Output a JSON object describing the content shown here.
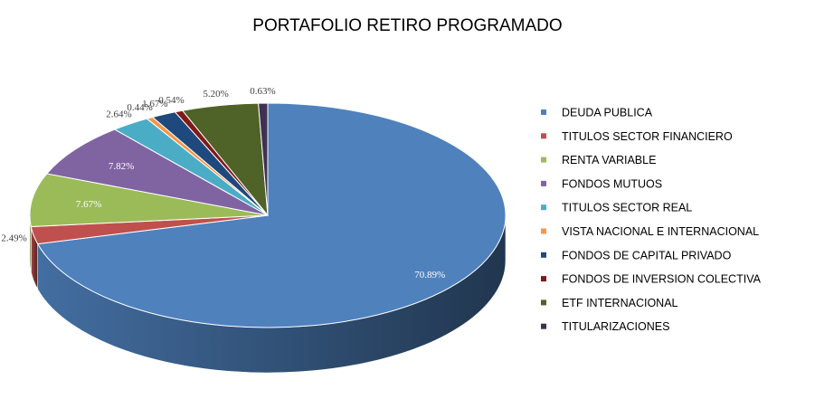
{
  "chart_data": {
    "type": "pie",
    "title": "PORTAFOLIO RETIRO PROGRAMADO",
    "legend_position": "right",
    "three_d": true,
    "slices": [
      {
        "label": "DEUDA PUBLICA",
        "value": 70.89,
        "display": "70.89%",
        "color": "#4f81bd"
      },
      {
        "label": "TITULOS SECTOR FINANCIERO",
        "value": 2.49,
        "display": "2.49%",
        "color": "#c0504d"
      },
      {
        "label": "RENTA VARIABLE",
        "value": 7.67,
        "display": "7.67%",
        "color": "#9bbb59"
      },
      {
        "label": "FONDOS MUTUOS",
        "value": 7.82,
        "display": "7.82%",
        "color": "#8064a2"
      },
      {
        "label": "TITULOS SECTOR REAL",
        "value": 2.64,
        "display": "2.64%",
        "color": "#4bacc6"
      },
      {
        "label": "VISTA NACIONAL E INTERNACIONAL",
        "value": 0.44,
        "display": "0.44%",
        "color": "#f79646"
      },
      {
        "label": "FONDOS DE CAPITAL PRIVADO",
        "value": 1.67,
        "display": "1.67%",
        "color": "#1f497d"
      },
      {
        "label": "FONDOS DE INVERSION COLECTIVA",
        "value": 0.54,
        "display": "0.54%",
        "color": "#7f1a1a"
      },
      {
        "label": "ETF INTERNACIONAL",
        "value": 5.2,
        "display": "5.20%",
        "color": "#4f6228"
      },
      {
        "label": "TITULARIZACIONES",
        "value": 0.63,
        "display": "0.63%",
        "color": "#403151"
      }
    ]
  }
}
